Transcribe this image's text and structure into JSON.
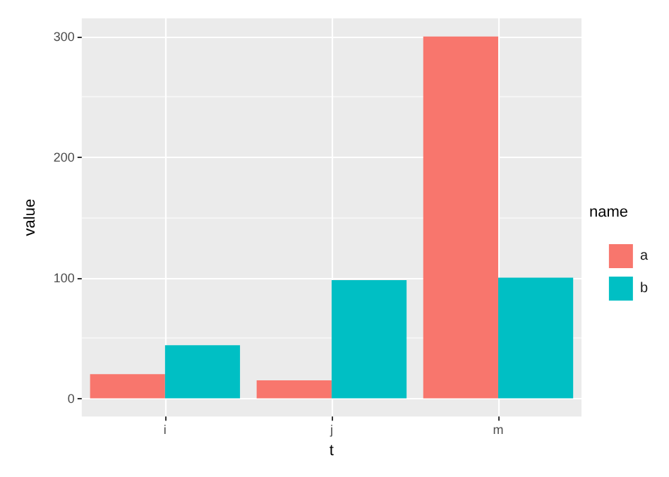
{
  "chart_data": {
    "type": "bar",
    "xlabel": "t",
    "ylabel": "value",
    "legend_title": "name",
    "categories": [
      "i",
      "j",
      "m"
    ],
    "series": [
      {
        "name": "a",
        "color": "#f8766d",
        "values": [
          20,
          15,
          300
        ]
      },
      {
        "name": "b",
        "color": "#00bfc4",
        "values": [
          44,
          98,
          100
        ]
      }
    ],
    "ylim": [
      -15,
      315
    ],
    "yticks": [
      0,
      100,
      200,
      300
    ],
    "grid": true,
    "legend": "right"
  }
}
